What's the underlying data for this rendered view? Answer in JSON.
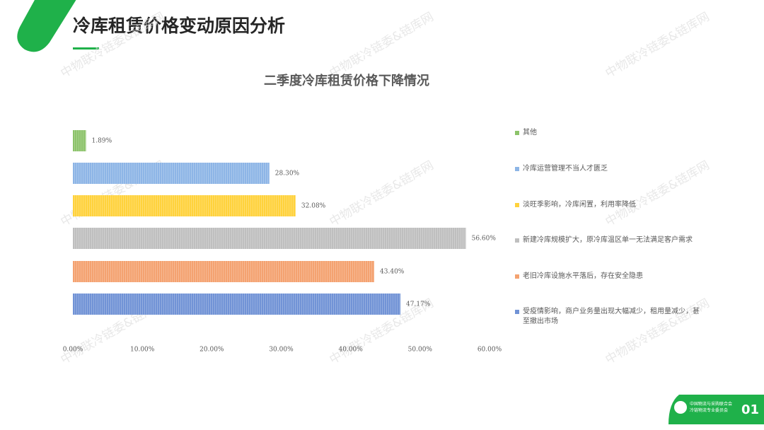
{
  "header": {
    "title": "冷库租赁价格变动原因分析",
    "page_number": "01",
    "watermark": "中物联冷链委&链库网",
    "logo_lines": [
      "中国物流与采购联合会",
      "冷链物流专业委员会"
    ]
  },
  "chart_data": {
    "type": "bar",
    "orientation": "horizontal",
    "title": "二季度冷库租赁价格下降情况",
    "categories": [
      "其他",
      "冷库运营管理不当人才匮乏",
      "淡旺季影响，冷库闲置，利用率降低",
      "新建冷库规模扩大，原冷库温区单一无法满足客户需求",
      "老旧冷库设施水平落后，存在安全隐患",
      "受疫情影响，商户业务量出现大幅减少，租用量减少，甚至撤出市场"
    ],
    "values": [
      1.89,
      28.3,
      32.08,
      56.6,
      43.4,
      47.17
    ],
    "value_labels": [
      "1.89%",
      "28.30%",
      "32.08%",
      "56.60%",
      "43.40%",
      "47.17%"
    ],
    "colors": [
      "#8cc36a",
      "#8db5e6",
      "#ffd23c",
      "#bfbfbf",
      "#f4a270",
      "#7193d6"
    ],
    "xlim": [
      0,
      60
    ],
    "xticks": [
      {
        "value": 0,
        "label": "0.00%"
      },
      {
        "value": 10,
        "label": "10.00%"
      },
      {
        "value": 20,
        "label": "20.00%"
      },
      {
        "value": 30,
        "label": "30.00%"
      },
      {
        "value": 40,
        "label": "40.00%"
      },
      {
        "value": 50,
        "label": "50.00%"
      },
      {
        "value": 60,
        "label": "60.00%"
      }
    ],
    "grid": false,
    "legend": "right"
  }
}
